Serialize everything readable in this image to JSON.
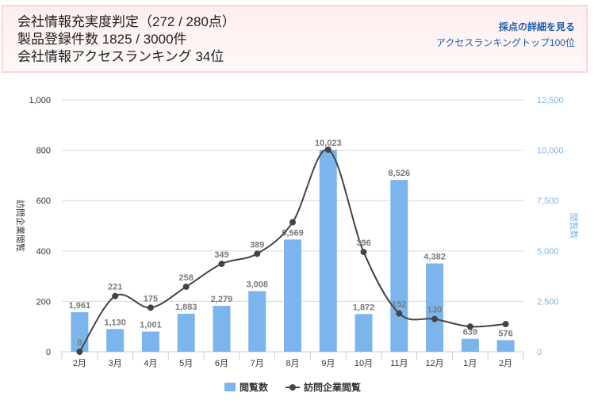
{
  "header": {
    "line1": "会社情報充実度判定（272 / 280点）",
    "line2": "製品登録件数 1825 / 3000件",
    "line3": "会社情報アクセスランキング 34位",
    "link_detail": "採点の詳細を見る",
    "link_ranking": "アクセスランキングトップ100位"
  },
  "colors": {
    "bar": "#7cb5ec",
    "line": "#434348",
    "right_axis": "#7cb5ec"
  },
  "chart_data": {
    "type": "bar+line",
    "categories": [
      "2月",
      "3月",
      "4月",
      "5月",
      "6月",
      "7月",
      "8月",
      "9月",
      "10月",
      "11月",
      "12月",
      "1月",
      "2月"
    ],
    "series": [
      {
        "name": "閲覧数",
        "type": "bar",
        "axis": "right",
        "values": [
          1961,
          1130,
          1001,
          1883,
          2279,
          3008,
          5569,
          10023,
          1872,
          8526,
          4382,
          639,
          576
        ],
        "labels": [
          "1,961",
          "1,130",
          "1,001",
          "1,883",
          "2,279",
          "3,008",
          "5,569",
          "10,023",
          "1,872",
          "8,526",
          "4,382",
          "639",
          "576"
        ]
      },
      {
        "name": "訪問企業閲覧",
        "type": "spline",
        "axis": "left",
        "values": [
          0,
          221,
          175,
          258,
          349,
          389,
          514,
          802,
          396,
          152,
          130,
          100,
          110
        ],
        "labels": [
          "0",
          "221",
          "175",
          "258",
          "349",
          "389",
          "",
          "",
          "396",
          "152",
          "130",
          "",
          ""
        ]
      }
    ],
    "left_axis": {
      "label": "訪問企業閲覧",
      "range": [
        0,
        1000
      ],
      "ticks": [
        "0",
        "200",
        "400",
        "600",
        "800",
        "1,000"
      ]
    },
    "right_axis": {
      "label": "閲覧数",
      "range": [
        0,
        12500
      ],
      "ticks": [
        "0",
        "2,500",
        "5,000",
        "7,500",
        "10,000",
        "12,500"
      ]
    },
    "grid": true,
    "legend": "bottom-center"
  }
}
